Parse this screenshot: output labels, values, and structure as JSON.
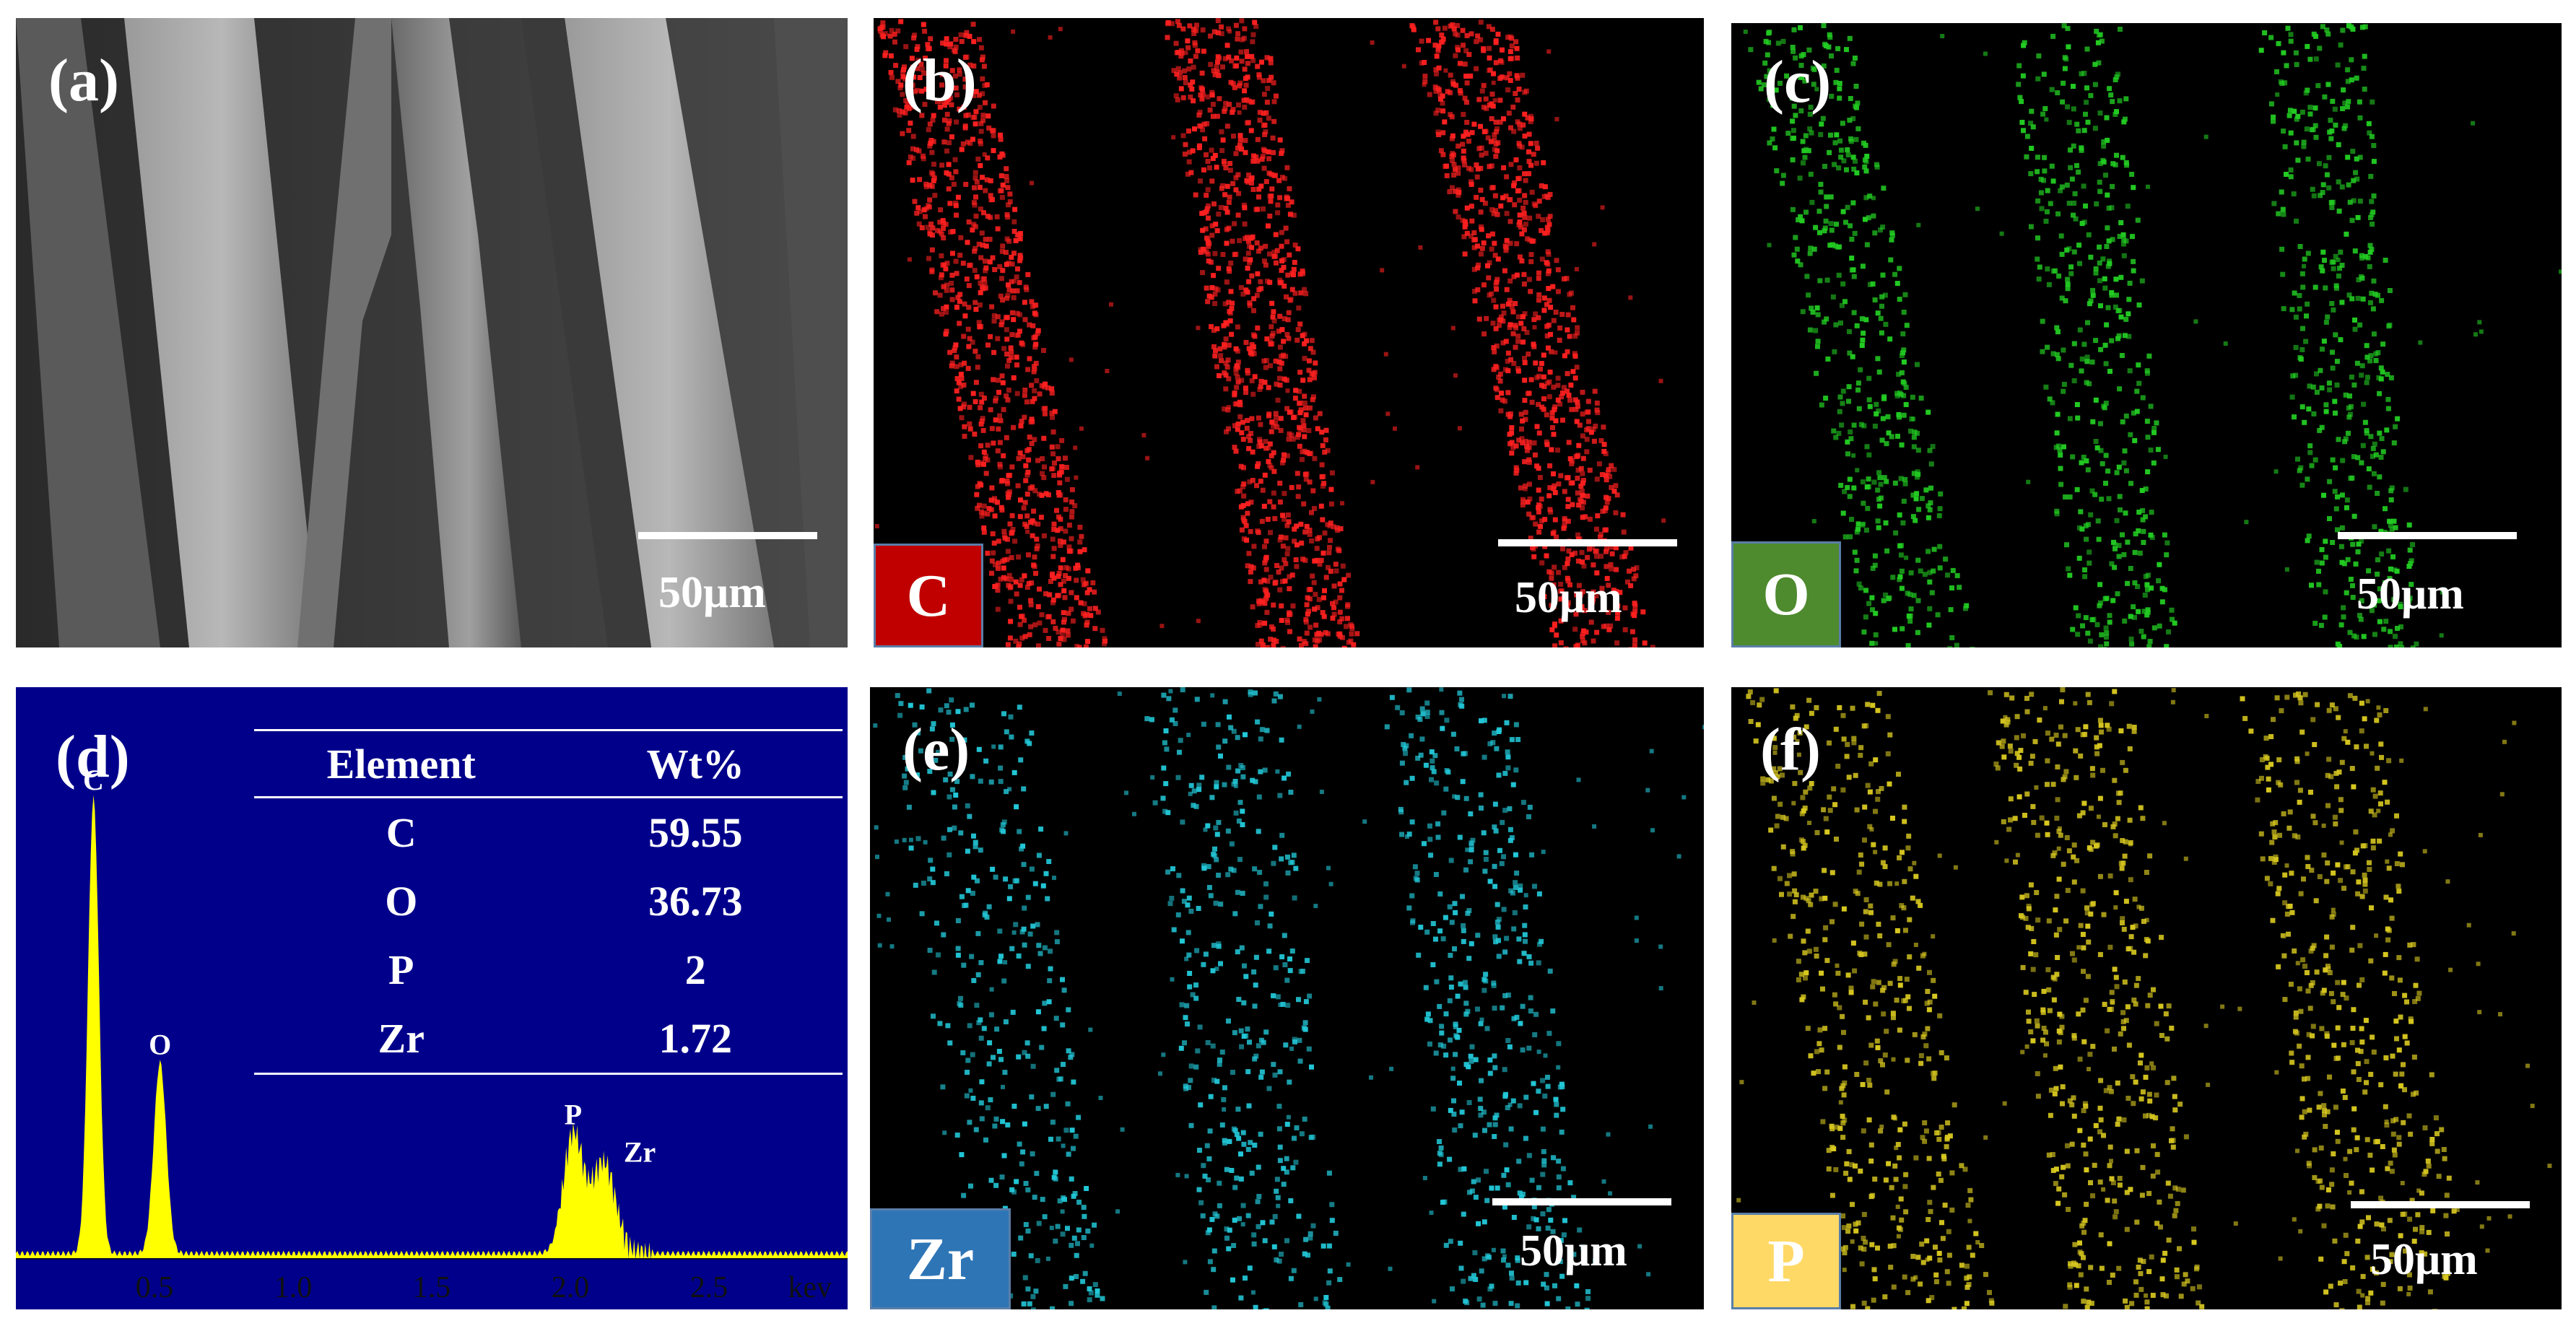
{
  "panels": {
    "a": {
      "label": "(a)",
      "scale": "50μm"
    },
    "b": {
      "label": "(b)",
      "scale": "50μm",
      "element": "C",
      "badge_color": "#c00000",
      "dot_color": "#ff2020"
    },
    "c": {
      "label": "(c)",
      "scale": "50μm",
      "element": "O",
      "badge_color": "#4e8a2e",
      "dot_color": "#22cc22"
    },
    "d": {
      "label": "(d)"
    },
    "e": {
      "label": "(e)",
      "scale": "50μm",
      "element": "Zr",
      "badge_color": "#2e75b6",
      "dot_color": "#22c8d8"
    },
    "f": {
      "label": "(f)",
      "scale": "50μm",
      "element": "P",
      "badge_color": "#ffd966",
      "dot_color": "#d8c820"
    }
  },
  "eds_table": {
    "headers": [
      "Element",
      "Wt%"
    ],
    "rows": [
      [
        "C",
        "59.55"
      ],
      [
        "O",
        "36.73"
      ],
      [
        "P",
        "2"
      ],
      [
        "Zr",
        "1.72"
      ]
    ]
  },
  "chart_data": {
    "type": "area",
    "xlabel": "kev",
    "x_ticks": [
      "0.5",
      "1.0",
      "1.5",
      "2.0",
      "2.5"
    ],
    "xlim": [
      0,
      3.0
    ],
    "peaks": [
      {
        "label": "C",
        "x": 0.28,
        "height": 1.0
      },
      {
        "label": "O",
        "x": 0.52,
        "height": 0.42
      },
      {
        "label": "P",
        "x": 2.01,
        "height": 0.26
      },
      {
        "label": "Zr",
        "x": 2.12,
        "height": 0.2
      }
    ],
    "fill_color": "#ffff00",
    "background": "#00008b"
  }
}
